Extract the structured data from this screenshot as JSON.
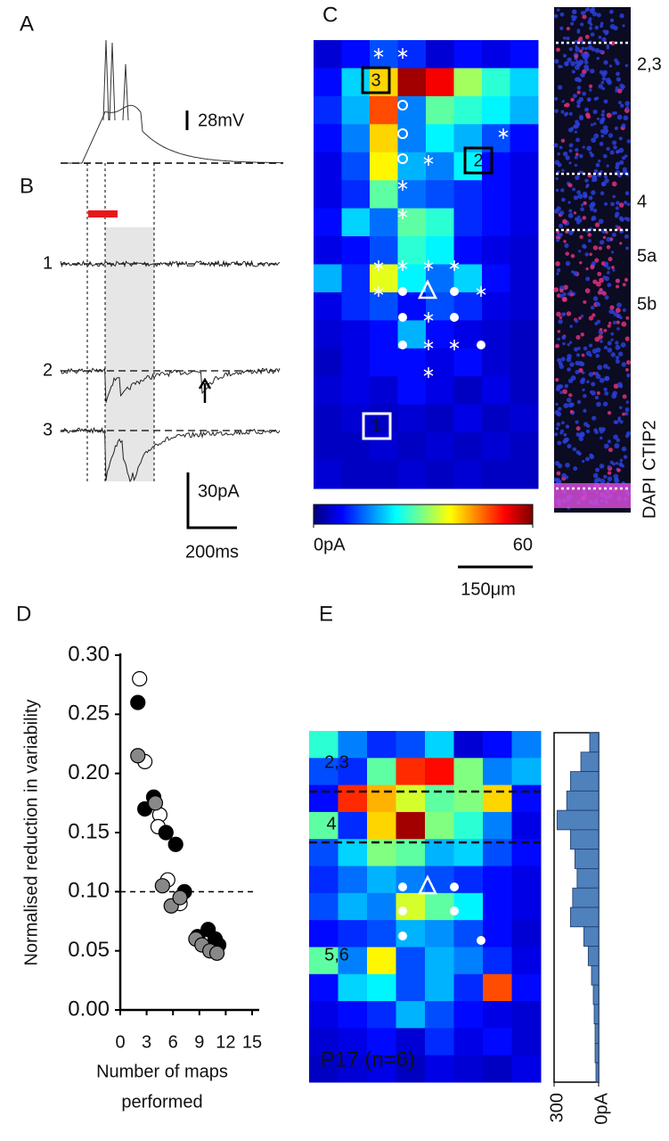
{
  "panel_labels": [
    "A",
    "B",
    "C",
    "D",
    "E"
  ],
  "panel_a": {
    "scale_label": "28mV"
  },
  "panel_b": {
    "trace_labels": [
      "1",
      "2",
      "3"
    ],
    "scale_labels": [
      "30pA",
      "200ms"
    ]
  },
  "panel_c": {
    "map_labels": [
      "3",
      "2",
      "1"
    ],
    "layer_labels": [
      "2,3",
      "4",
      "5a",
      "5b"
    ],
    "stain_labels": [
      "DAPI",
      "CTIP2"
    ],
    "scale_label": "150μm"
  },
  "panel_e": {
    "layer_labels": [
      "2,3",
      "4",
      "5,6"
    ],
    "caption": "P17 (n=6)"
  },
  "chart_data": [
    {
      "type": "scatter",
      "ylabel": "Normalised reduction in variability",
      "xlabel": [
        "Number of maps",
        "performed"
      ],
      "xlim": [
        0,
        15
      ],
      "ylim": [
        0,
        0.3
      ],
      "xticks": [
        0,
        3,
        6,
        9,
        12,
        15
      ],
      "yticks": [
        {
          "value": 0,
          "label": "0.00"
        },
        {
          "value": 0.05,
          "label": "0.05"
        },
        {
          "value": 0.1,
          "label": "0.10"
        },
        {
          "value": 0.15,
          "label": "0.15"
        },
        {
          "value": 0.2,
          "label": "0.20"
        },
        {
          "value": 0.25,
          "label": "0.25"
        },
        {
          "value": 0.3,
          "label": "0.30"
        }
      ],
      "reference_line": 0.1,
      "series": [
        {
          "color": "#ffffff",
          "x": [
            2.2,
            2.8,
            4.5,
            4.3,
            5.4,
            6.8
          ],
          "values": [
            0.28,
            0.21,
            0.165,
            0.155,
            0.11,
            0.09
          ]
        },
        {
          "color": "#000000",
          "x": [
            2.0,
            2.8,
            3.8,
            5.2,
            6.3,
            7.3,
            8.8,
            10.0,
            10.8,
            11.2
          ],
          "values": [
            0.26,
            0.17,
            0.18,
            0.15,
            0.14,
            0.1,
            0.062,
            0.068,
            0.06,
            0.055
          ]
        },
        {
          "color": "#888888",
          "x": [
            2.0,
            4.0,
            4.8,
            5.8,
            6.8,
            8.6,
            9.3,
            10.2,
            11.0
          ],
          "values": [
            0.215,
            0.175,
            0.105,
            0.088,
            0.095,
            0.06,
            0.055,
            0.05,
            0.048
          ]
        }
      ]
    },
    {
      "type": "heatmap",
      "clim": [
        0,
        60
      ],
      "colorbar_ticks": [
        {
          "value": 0,
          "label": "0pA"
        },
        60
      ],
      "z": [
        [
          5,
          8,
          12,
          10,
          5,
          8,
          6,
          8
        ],
        [
          8,
          20,
          40,
          58,
          53,
          32,
          25,
          20
        ],
        [
          10,
          18,
          48,
          15,
          28,
          25,
          22,
          18
        ],
        [
          8,
          15,
          40,
          15,
          22,
          18,
          12,
          8
        ],
        [
          6,
          12,
          38,
          18,
          15,
          22,
          8,
          6
        ],
        [
          6,
          10,
          28,
          14,
          12,
          10,
          8,
          6
        ],
        [
          8,
          20,
          14,
          28,
          25,
          10,
          8,
          6
        ],
        [
          6,
          8,
          12,
          25,
          22,
          8,
          6,
          5
        ],
        [
          18,
          10,
          36,
          22,
          14,
          20,
          8,
          5
        ],
        [
          6,
          10,
          12,
          8,
          12,
          10,
          6,
          5
        ],
        [
          5,
          6,
          8,
          18,
          8,
          6,
          5,
          4
        ],
        [
          4,
          6,
          8,
          8,
          6,
          8,
          5,
          4
        ],
        [
          5,
          6,
          5,
          8,
          6,
          4,
          6,
          4
        ],
        [
          4,
          5,
          4,
          5,
          4,
          6,
          4,
          5
        ],
        [
          4,
          4,
          5,
          4,
          5,
          4,
          5,
          4
        ],
        [
          5,
          4,
          4,
          5,
          4,
          5,
          4,
          4
        ]
      ]
    },
    {
      "type": "heatmap",
      "clim": [
        0,
        60
      ],
      "z": [
        [
          25,
          15,
          10,
          12,
          20,
          5,
          8,
          15
        ],
        [
          12,
          10,
          28,
          50,
          52,
          30,
          15,
          18
        ],
        [
          8,
          50,
          42,
          35,
          28,
          30,
          40,
          8
        ],
        [
          28,
          10,
          40,
          58,
          30,
          25,
          15,
          6
        ],
        [
          12,
          20,
          30,
          28,
          18,
          20,
          12,
          8
        ],
        [
          10,
          14,
          18,
          15,
          12,
          10,
          8,
          6
        ],
        [
          12,
          18,
          15,
          35,
          28,
          22,
          8,
          6
        ],
        [
          8,
          10,
          12,
          18,
          16,
          12,
          8,
          5
        ],
        [
          28,
          15,
          38,
          12,
          18,
          15,
          10,
          6
        ],
        [
          8,
          20,
          22,
          12,
          18,
          10,
          48,
          8
        ],
        [
          6,
          8,
          10,
          18,
          12,
          8,
          6,
          5
        ],
        [
          5,
          6,
          8,
          5,
          10,
          6,
          8,
          5
        ],
        [
          4,
          5,
          6,
          4,
          6,
          5,
          4,
          6
        ]
      ]
    },
    {
      "type": "bar",
      "orientation": "horizontal",
      "color": "#4f81bd",
      "xlim": [
        0,
        300
      ],
      "xticks": [
        300,
        {
          "value": 0,
          "label": "0pA"
        }
      ],
      "values": [
        60,
        120,
        190,
        215,
        280,
        190,
        160,
        145,
        175,
        190,
        100,
        70,
        48,
        36,
        30,
        24,
        24,
        18
      ]
    }
  ]
}
